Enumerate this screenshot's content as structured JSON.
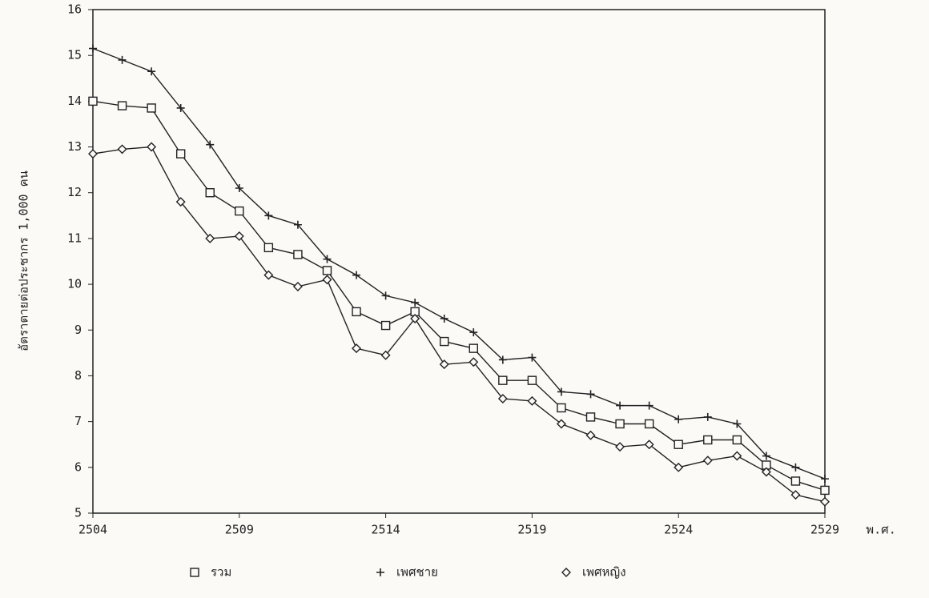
{
  "chart_data": {
    "type": "line",
    "x_label": "พ.ศ.",
    "y_label": "อัตราตายต่อประชากร 1,000 คน",
    "x": [
      2504,
      2505,
      2506,
      2507,
      2508,
      2509,
      2510,
      2511,
      2512,
      2513,
      2514,
      2515,
      2516,
      2517,
      2518,
      2519,
      2520,
      2521,
      2522,
      2523,
      2524,
      2525,
      2526,
      2527,
      2528,
      2529
    ],
    "series": [
      {
        "name": "รวม",
        "color": "#222222",
        "marker": "square",
        "values": [
          14.0,
          13.9,
          13.85,
          12.85,
          12.0,
          11.6,
          10.8,
          10.65,
          10.3,
          9.4,
          9.1,
          9.4,
          8.75,
          8.6,
          7.9,
          7.9,
          7.3,
          7.1,
          6.95,
          6.95,
          6.5,
          6.6,
          6.6,
          6.05,
          5.7,
          5.5
        ]
      },
      {
        "name": "เพศชาย",
        "color": "#222222",
        "marker": "plus",
        "values": [
          15.15,
          14.9,
          14.65,
          13.85,
          13.05,
          12.1,
          11.5,
          11.3,
          10.55,
          10.2,
          9.75,
          9.6,
          9.25,
          8.95,
          8.35,
          8.4,
          7.65,
          7.6,
          7.35,
          7.35,
          7.05,
          7.1,
          6.95,
          6.25,
          6.0,
          5.75
        ]
      },
      {
        "name": "เพศหญิง",
        "color": "#222222",
        "marker": "diamond",
        "values": [
          12.85,
          12.95,
          13.0,
          11.8,
          11.0,
          11.05,
          10.2,
          9.95,
          10.1,
          8.6,
          8.45,
          9.25,
          8.25,
          8.3,
          7.5,
          7.45,
          6.95,
          6.7,
          6.45,
          6.5,
          6.0,
          6.15,
          6.25,
          5.9,
          5.4,
          5.25
        ]
      }
    ],
    "xlim": [
      2504,
      2529
    ],
    "xticks": [
      2504,
      2509,
      2514,
      2519,
      2524,
      2529
    ],
    "ylim": [
      5,
      16
    ],
    "yticks": [
      5,
      6,
      7,
      8,
      9,
      10,
      11,
      12,
      13,
      14,
      15,
      16
    ],
    "grid": false
  }
}
